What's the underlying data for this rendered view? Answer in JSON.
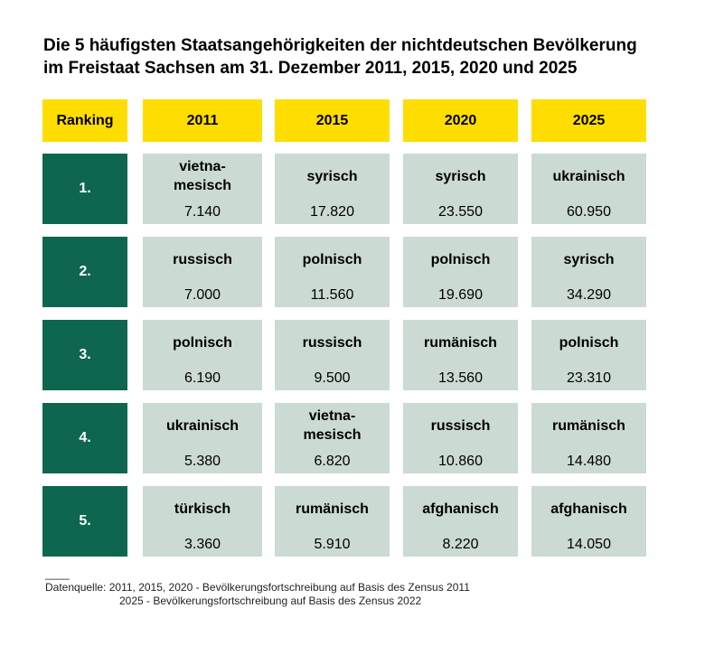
{
  "title_line1": "Die 5 häufigsten Staatsangehörigkeiten der nichtdeutschen Bevölkerung",
  "title_line2": "im Freistaat Sachsen am 31. Dezember 2011, 2015, 2020 und 2025",
  "colors": {
    "header": "#ffdd00",
    "rank": "#0e6650",
    "cell": "#cbdad2"
  },
  "chart_data": {
    "type": "table",
    "title": "Die 5 häufigsten Staatsangehörigkeiten der nichtdeutschen Bevölkerung im Freistaat Sachsen am 31. Dezember 2011, 2015, 2020 und 2025",
    "headers": [
      "Ranking",
      "2011",
      "2015",
      "2020",
      "2025"
    ],
    "rows": [
      {
        "rank": "1.",
        "cells": [
          {
            "name": "vietna-\nmesisch",
            "value": "7.140"
          },
          {
            "name": "syrisch",
            "value": "17.820"
          },
          {
            "name": "syrisch",
            "value": "23.550"
          },
          {
            "name": "ukrainisch",
            "value": "60.950"
          }
        ]
      },
      {
        "rank": "2.",
        "cells": [
          {
            "name": "russisch",
            "value": "7.000"
          },
          {
            "name": "polnisch",
            "value": "11.560"
          },
          {
            "name": "polnisch",
            "value": "19.690"
          },
          {
            "name": "syrisch",
            "value": "34.290"
          }
        ]
      },
      {
        "rank": "3.",
        "cells": [
          {
            "name": "polnisch",
            "value": "6.190"
          },
          {
            "name": "russisch",
            "value": "9.500"
          },
          {
            "name": "rumänisch",
            "value": "13.560"
          },
          {
            "name": "polnisch",
            "value": "23.310"
          }
        ]
      },
      {
        "rank": "4.",
        "cells": [
          {
            "name": "ukrainisch",
            "value": "5.380"
          },
          {
            "name": "vietna-\nmesisch",
            "value": "6.820"
          },
          {
            "name": "russisch",
            "value": "10.860"
          },
          {
            "name": "rumänisch",
            "value": "14.480"
          }
        ]
      },
      {
        "rank": "5.",
        "cells": [
          {
            "name": "türkisch",
            "value": "3.360"
          },
          {
            "name": "rumänisch",
            "value": "5.910"
          },
          {
            "name": "afghanisch",
            "value": "8.220"
          },
          {
            "name": "afghanisch",
            "value": "14.050"
          }
        ]
      }
    ]
  },
  "footnote_separator": "____",
  "source_line1": "Datenquelle: 2011, 2015, 2020 - Bevölkerungsfortschreibung auf Basis des Zensus 2011",
  "source_line2": "2025 - Bevölkerungsfortschreibung auf Basis des Zensus 2022"
}
